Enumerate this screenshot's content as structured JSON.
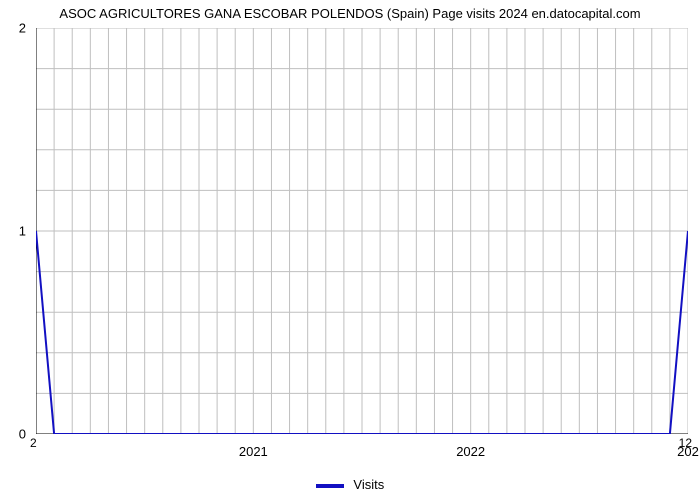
{
  "chart": {
    "type": "line",
    "title": "ASOC AGRICULTORES GANA ESCOBAR POLENDOS (Spain) Page visits 2024 en.datocapital.com",
    "title_fontsize": 13,
    "title_color": "#000000",
    "background_color": "#ffffff",
    "plot_background": "#ffffff",
    "grid_color": "#bfbfbf",
    "grid_linewidth": 1,
    "axis_line_color": "#000000",
    "axis_line_width": 1,
    "series": {
      "name": "Visits",
      "color": "#1210c2",
      "line_width": 2,
      "x": [
        0,
        1,
        35,
        36
      ],
      "y": [
        1,
        0,
        0,
        1
      ]
    },
    "x_axis": {
      "min": 0,
      "max": 36,
      "grid_every": 1,
      "major_ticks": [
        {
          "pos": 12,
          "label": "2021"
        },
        {
          "pos": 24,
          "label": "2022"
        },
        {
          "pos": 36,
          "label": "202"
        }
      ],
      "corner_left_label": "2",
      "corner_right_label": "12"
    },
    "y_axis": {
      "min": 0,
      "max": 2,
      "ticks": [
        0,
        1,
        2
      ],
      "minor_grid_count": 5,
      "label_fontsize": 13
    },
    "legend": {
      "label": "Visits",
      "swatch_color": "#1210c2",
      "fontsize": 13
    }
  }
}
